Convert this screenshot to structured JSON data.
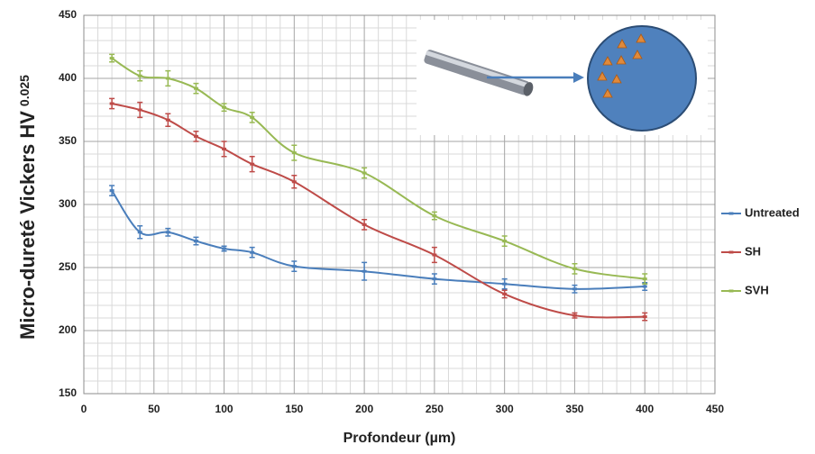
{
  "chart_data": {
    "type": "line",
    "x_label": "Profondeur (µm)",
    "y_label": "Micro-dureté Vickers HV",
    "y_label_subscript": "0.025",
    "x": [
      20,
      40,
      60,
      80,
      100,
      120,
      150,
      200,
      250,
      300,
      350,
      400
    ],
    "series": [
      {
        "name": "Untreated",
        "color": "#4a7ebb",
        "values": [
          311,
          278,
          278,
          271,
          265,
          262,
          251,
          247,
          241,
          237,
          233,
          235
        ],
        "errors": [
          4,
          5,
          3,
          3,
          2,
          4,
          4,
          7,
          4,
          4,
          3,
          3
        ]
      },
      {
        "name": "SH",
        "color": "#be4b48",
        "values": [
          380,
          375,
          367,
          354,
          344,
          332,
          318,
          284,
          260,
          229,
          212,
          211
        ],
        "errors": [
          4,
          6,
          5,
          4,
          6,
          6,
          5,
          4,
          6,
          3,
          2,
          3
        ]
      },
      {
        "name": "SVH",
        "color": "#98b954",
        "values": [
          416,
          402,
          400,
          392,
          377,
          369,
          341,
          325,
          291,
          271,
          249,
          241
        ],
        "errors": [
          3,
          4,
          6,
          4,
          3,
          4,
          6,
          4,
          3,
          4,
          4,
          4
        ]
      }
    ],
    "xlim": [
      0,
      450
    ],
    "xticks": [
      0,
      50,
      100,
      150,
      200,
      250,
      300,
      350,
      400,
      450
    ],
    "ylim": [
      150,
      450
    ],
    "yticks": [
      150,
      200,
      250,
      300,
      350,
      400,
      450
    ],
    "grid": true,
    "minor_grid": true,
    "smooth": true,
    "legend": "right"
  }
}
